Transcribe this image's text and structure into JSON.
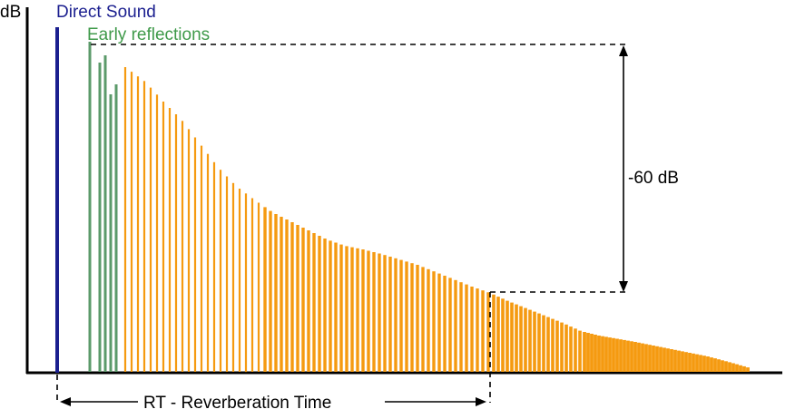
{
  "labels": {
    "y_axis": "dB",
    "direct_sound": "Direct Sound",
    "early_reflections": "Early reflections",
    "decay_range": "-60 dB",
    "reverb_time": "RT - Reverberation Time"
  },
  "colors": {
    "direct_sound": "#1b1f8f",
    "early_reflections": "#5b9a6a",
    "early_reflections_text": "#3f9a4a",
    "late_reverb": "#f59a10",
    "axis": "#000000"
  }
}
